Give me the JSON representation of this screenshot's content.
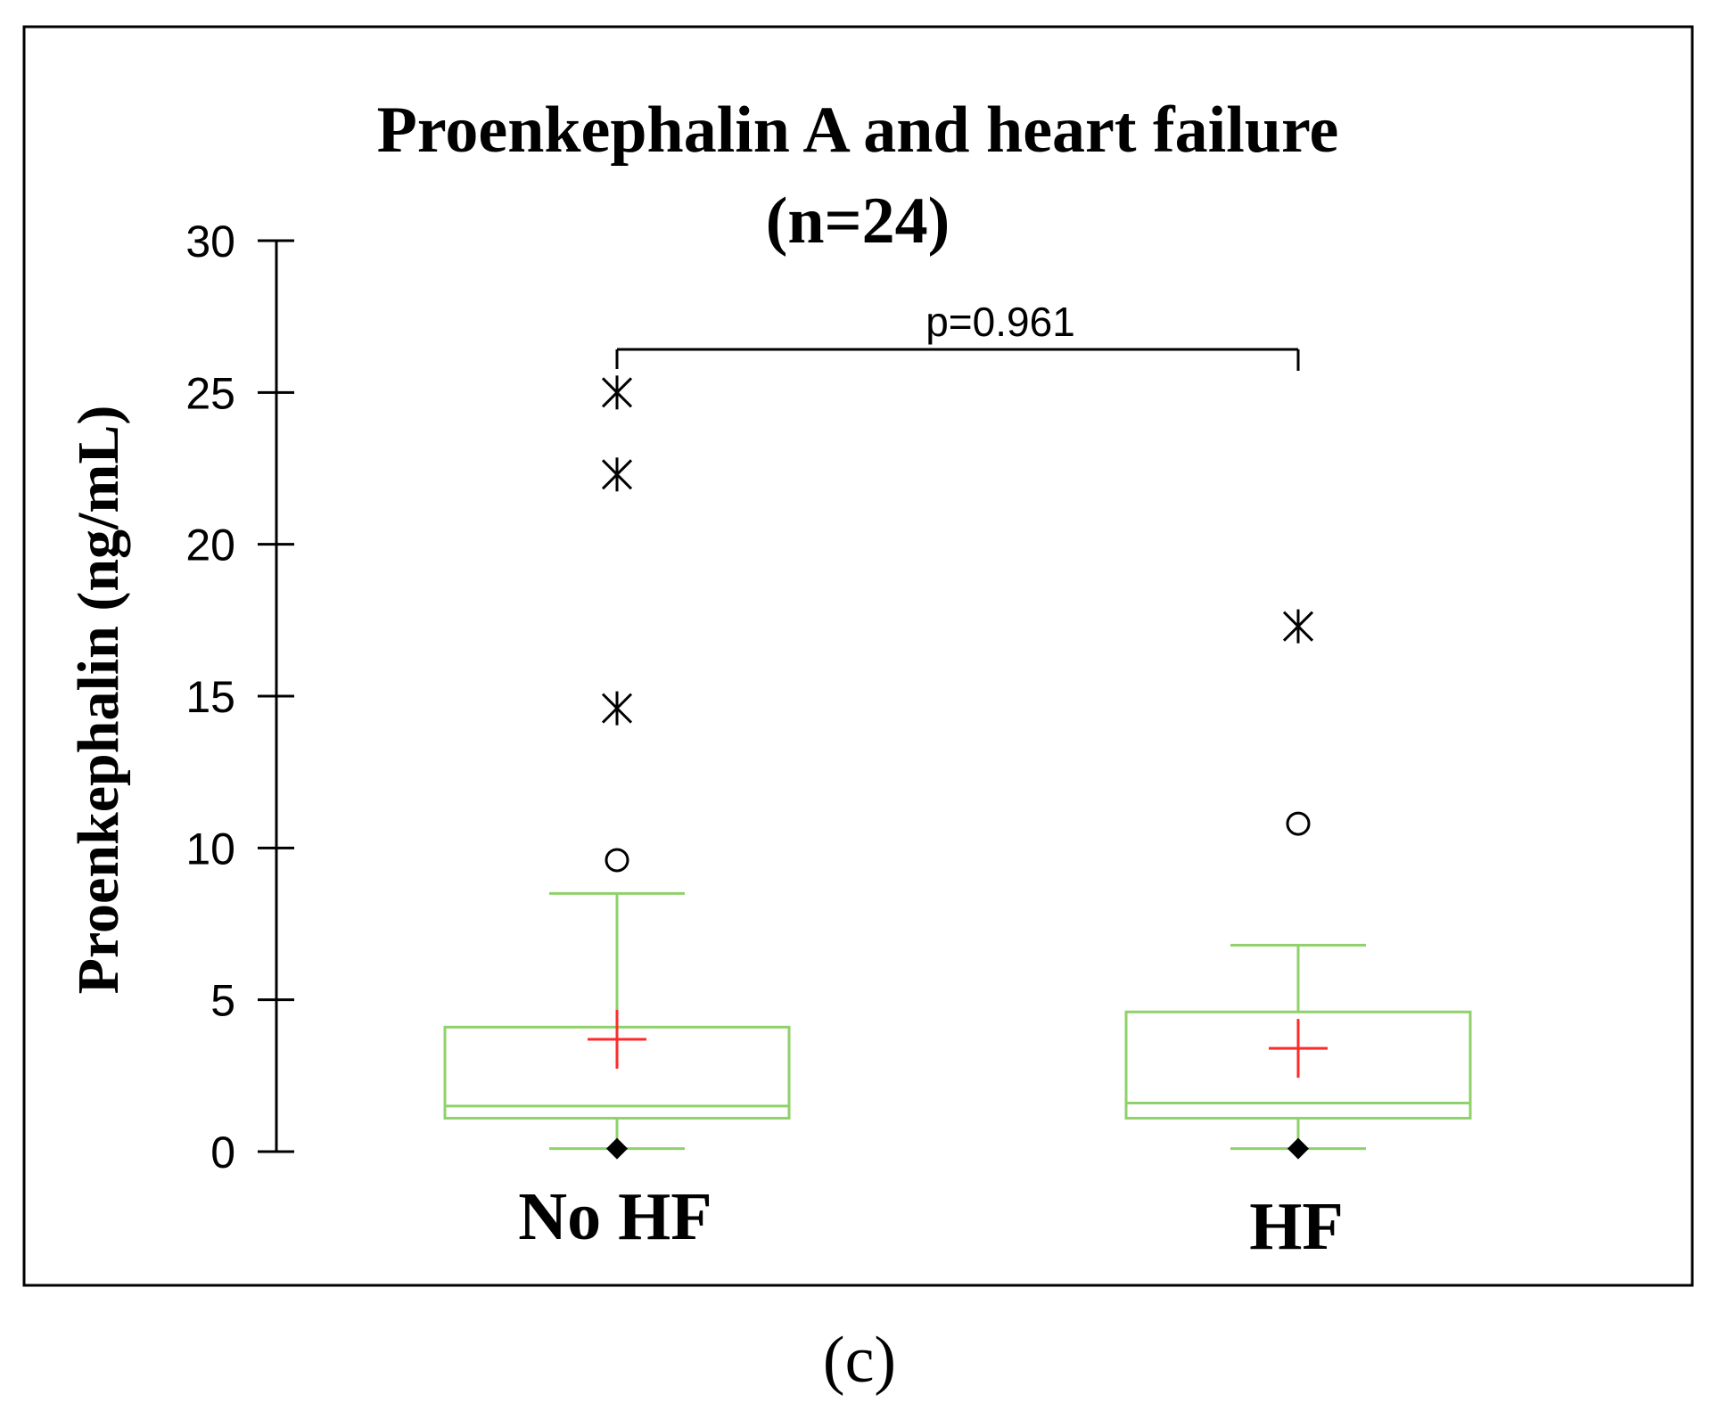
{
  "chart_data": {
    "type": "box",
    "title": "Proenkephalin A and heart failure",
    "subtitle": "(n=24)",
    "ylabel": "Proenkephalin (ng/mL)",
    "xlabel": "",
    "ylim": [
      0,
      30
    ],
    "yticks": [
      0,
      5,
      10,
      15,
      20,
      25,
      30
    ],
    "grid": false,
    "categories": [
      "No HF",
      "HF"
    ],
    "boxes": [
      {
        "category": "No HF",
        "min": 0.1,
        "q1": 1.1,
        "median": 1.5,
        "q3": 4.1,
        "whisker_high": 8.5,
        "mean": 3.7,
        "min_marker": 0.1,
        "outliers": [
          9.6
        ],
        "extreme_outliers": [
          14.6,
          22.3,
          25.0
        ]
      },
      {
        "category": "HF",
        "min": 0.1,
        "q1": 1.1,
        "median": 1.6,
        "q3": 4.6,
        "whisker_high": 6.8,
        "mean": 3.4,
        "min_marker": 0.1,
        "outliers": [
          10.8
        ],
        "extreme_outliers": [
          17.3
        ]
      }
    ],
    "annotation": {
      "text": "p=0.961",
      "between": [
        "No HF",
        "HF"
      ]
    },
    "panel_label": "(c)",
    "colors": {
      "box": "#8fd16a",
      "mean": "#ff2b2b",
      "markers": "#000000",
      "frame": "#000000"
    }
  }
}
